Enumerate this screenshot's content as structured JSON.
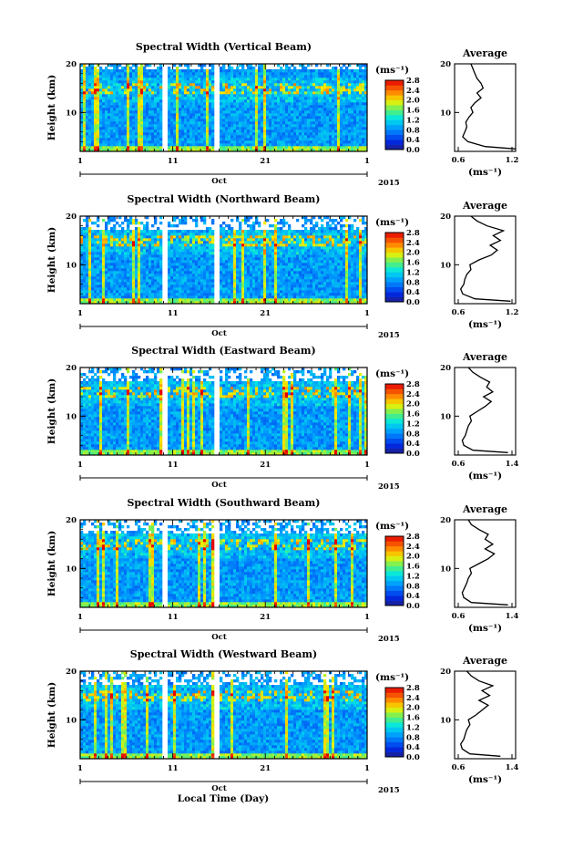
{
  "figure": {
    "xlabel": "Local Time (Day)",
    "month_label": "Oct",
    "year_label": "2015"
  },
  "chart_data": [
    {
      "type": "heatmap",
      "title": "Spectral Width (Vertical Beam)",
      "ylabel": "Height (km)",
      "ylim": [
        2,
        20
      ],
      "yticks": [
        10,
        20
      ],
      "xticks": [
        "1",
        "11",
        "21",
        "1"
      ],
      "xlim_days": [
        1,
        32
      ],
      "colorbar": {
        "unit": "(ms⁻¹)",
        "ticks": [
          "0.0",
          "0.4",
          "0.8",
          "1.2",
          "1.6",
          "2.0",
          "2.4",
          "2.8"
        ],
        "range": [
          0,
          2.8
        ]
      },
      "gaps_days": [
        [
          9.9,
          10.3
        ],
        [
          15.4,
          16.0
        ]
      ],
      "noise_top_km": 19.0,
      "profile": {
        "title": "Average",
        "xlabel": "(ms⁻¹)",
        "xticks": [
          "0.6",
          "1.2"
        ],
        "xlim": [
          0.6,
          1.2
        ],
        "ylim": [
          2,
          20
        ],
        "yticks": [
          "10",
          "20"
        ],
        "values": [
          [
            2.5,
            1.2
          ],
          [
            3,
            0.9
          ],
          [
            4,
            0.73
          ],
          [
            5,
            0.68
          ],
          [
            6,
            0.7
          ],
          [
            7,
            0.72
          ],
          [
            8,
            0.71
          ],
          [
            9,
            0.74
          ],
          [
            10,
            0.78
          ],
          [
            11,
            0.76
          ],
          [
            12,
            0.8
          ],
          [
            13,
            0.86
          ],
          [
            14,
            0.82
          ],
          [
            15,
            0.88
          ],
          [
            16,
            0.86
          ],
          [
            17,
            0.82
          ],
          [
            18,
            0.8
          ],
          [
            19,
            0.78
          ],
          [
            20,
            0.76
          ]
        ]
      }
    },
    {
      "type": "heatmap",
      "title": "Spectral Width (Northward Beam)",
      "ylabel": "Height (km)",
      "ylim": [
        2,
        20
      ],
      "yticks": [
        10,
        20
      ],
      "xticks": [
        "1",
        "11",
        "21",
        "1"
      ],
      "xlim_days": [
        1,
        32
      ],
      "colorbar": {
        "unit": "(ms⁻¹)",
        "ticks": [
          "0.0",
          "0.4",
          "0.8",
          "1.2",
          "1.6",
          "2.0",
          "2.4",
          "2.8"
        ],
        "range": [
          0,
          2.8
        ]
      },
      "gaps_days": [
        [
          9.9,
          10.3
        ],
        [
          15.4,
          16.0
        ]
      ],
      "noise_top_km": 17.0,
      "profile": {
        "title": "Average",
        "xlabel": "(ms⁻¹)",
        "xticks": [
          "0.6",
          "1.2"
        ],
        "xlim": [
          0.6,
          1.2
        ],
        "ylim": [
          2,
          20
        ],
        "yticks": [
          "10",
          "20"
        ],
        "values": [
          [
            2.5,
            1.15
          ],
          [
            3,
            0.8
          ],
          [
            4,
            0.68
          ],
          [
            5,
            0.66
          ],
          [
            6,
            0.69
          ],
          [
            7,
            0.7
          ],
          [
            8,
            0.72
          ],
          [
            9,
            0.76
          ],
          [
            10,
            0.75
          ],
          [
            11,
            0.84
          ],
          [
            12,
            0.96
          ],
          [
            13,
            1.02
          ],
          [
            14,
            0.95
          ],
          [
            15,
            1.05
          ],
          [
            16,
            0.98
          ],
          [
            17,
            1.08
          ],
          [
            18,
            0.92
          ],
          [
            19,
            0.82
          ],
          [
            20,
            0.76
          ]
        ]
      }
    },
    {
      "type": "heatmap",
      "title": "Spectral Width (Eastward Beam)",
      "ylabel": "Height (km)",
      "ylim": [
        2,
        20
      ],
      "yticks": [
        10,
        20
      ],
      "xticks": [
        "1",
        "11",
        "21",
        "1"
      ],
      "xlim_days": [
        1,
        32
      ],
      "colorbar": {
        "unit": "(ms⁻¹)",
        "ticks": [
          "0.0",
          "0.4",
          "0.8",
          "1.2",
          "1.6",
          "2.0",
          "2.4",
          "2.8"
        ],
        "range": [
          0,
          2.8
        ]
      },
      "gaps_days": [
        [
          9.9,
          10.3
        ],
        [
          15.4,
          16.0
        ]
      ],
      "noise_top_km": 17.0,
      "profile": {
        "title": "Average",
        "xlabel": "(ms⁻¹)",
        "xticks": [
          "0.6",
          "1.4"
        ],
        "xlim": [
          0.6,
          1.4
        ],
        "ylim": [
          2,
          20
        ],
        "yticks": [
          "10",
          "20"
        ],
        "values": [
          [
            2.5,
            1.3
          ],
          [
            3,
            0.84
          ],
          [
            4,
            0.72
          ],
          [
            5,
            0.7
          ],
          [
            6,
            0.74
          ],
          [
            7,
            0.76
          ],
          [
            8,
            0.78
          ],
          [
            9,
            0.82
          ],
          [
            10,
            0.8
          ],
          [
            11,
            0.9
          ],
          [
            12,
            1.0
          ],
          [
            13,
            1.08
          ],
          [
            14,
            0.98
          ],
          [
            15,
            1.1
          ],
          [
            16,
            1.02
          ],
          [
            17,
            1.06
          ],
          [
            18,
            0.94
          ],
          [
            19,
            0.84
          ],
          [
            20,
            0.78
          ]
        ]
      }
    },
    {
      "type": "heatmap",
      "title": "Spectral Width (Southward Beam)",
      "ylabel": "Height (km)",
      "ylim": [
        2,
        20
      ],
      "yticks": [
        10,
        20
      ],
      "xticks": [
        "1",
        "11",
        "21",
        "1"
      ],
      "xlim_days": [
        1,
        32
      ],
      "colorbar": {
        "unit": "(ms⁻¹)",
        "ticks": [
          "0.0",
          "0.4",
          "0.8",
          "1.2",
          "1.6",
          "2.0",
          "2.4",
          "2.8"
        ],
        "range": [
          0,
          2.8
        ]
      },
      "gaps_days": [
        [
          9.9,
          10.3
        ],
        [
          15.4,
          16.0
        ]
      ],
      "noise_top_km": 17.0,
      "profile": {
        "title": "Average",
        "xlabel": "(ms⁻¹)",
        "xticks": [
          "0.6",
          "1.4"
        ],
        "xlim": [
          0.6,
          1.4
        ],
        "ylim": [
          2,
          20
        ],
        "yticks": [
          "10",
          "20"
        ],
        "values": [
          [
            2.5,
            1.3
          ],
          [
            3,
            0.82
          ],
          [
            4,
            0.72
          ],
          [
            5,
            0.7
          ],
          [
            6,
            0.73
          ],
          [
            7,
            0.76
          ],
          [
            8,
            0.78
          ],
          [
            9,
            0.82
          ],
          [
            10,
            0.8
          ],
          [
            11,
            0.92
          ],
          [
            12,
            1.04
          ],
          [
            13,
            1.12
          ],
          [
            14,
            1.0
          ],
          [
            15,
            1.1
          ],
          [
            16,
            1.0
          ],
          [
            17,
            1.04
          ],
          [
            18,
            0.92
          ],
          [
            19,
            0.82
          ],
          [
            20,
            0.78
          ]
        ]
      }
    },
    {
      "type": "heatmap",
      "title": "Spectral Width (Westward Beam)",
      "ylabel": "Height (km)",
      "ylim": [
        2,
        20
      ],
      "yticks": [
        10,
        20
      ],
      "xticks": [
        "1",
        "11",
        "21",
        "1"
      ],
      "xlim_days": [
        1,
        32
      ],
      "colorbar": {
        "unit": "(ms⁻¹)",
        "ticks": [
          "0.0",
          "0.4",
          "0.8",
          "1.2",
          "1.6",
          "2.0",
          "2.4",
          "2.8"
        ],
        "range": [
          0,
          2.8
        ]
      },
      "gaps_days": [
        [
          9.9,
          10.3
        ],
        [
          15.4,
          16.0
        ]
      ],
      "noise_top_km": 17.0,
      "profile": {
        "title": "Average",
        "xlabel": "(ms⁻¹)",
        "xticks": [
          "0.6",
          "1.4"
        ],
        "xlim": [
          0.6,
          1.4
        ],
        "ylim": [
          2,
          20
        ],
        "yticks": [
          "10",
          "20"
        ],
        "values": [
          [
            2.5,
            1.2
          ],
          [
            3,
            0.8
          ],
          [
            4,
            0.7
          ],
          [
            5,
            0.68
          ],
          [
            6,
            0.72
          ],
          [
            7,
            0.74
          ],
          [
            8,
            0.76
          ],
          [
            9,
            0.8
          ],
          [
            10,
            0.78
          ],
          [
            11,
            0.88
          ],
          [
            12,
            0.96
          ],
          [
            13,
            1.04
          ],
          [
            14,
            0.92
          ],
          [
            15,
            1.06
          ],
          [
            16,
            0.96
          ],
          [
            17,
            1.1
          ],
          [
            18,
            0.92
          ],
          [
            19,
            0.82
          ],
          [
            20,
            0.76
          ]
        ]
      }
    }
  ]
}
